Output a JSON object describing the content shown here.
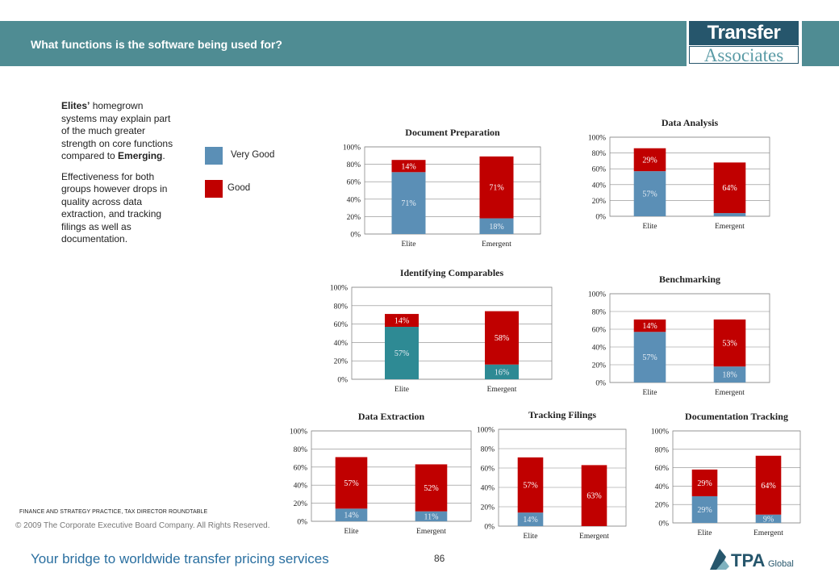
{
  "header": {
    "title": "What functions is the software being used for?",
    "logo_line1": "Transfer Pricing",
    "logo_line2": "Associates"
  },
  "sidebar": {
    "paragraph1_bold1": "Elites’",
    "paragraph1_rest": " homegrown systems may explain part of the much greater strength on core functions compared to ",
    "paragraph1_bold2": "Emerging",
    "paragraph1_end": ".",
    "paragraph2": "Effectiveness for both groups however drops in quality across data extraction, and tracking filings as well as documentation."
  },
  "legend": {
    "items": [
      {
        "label": "Very Good",
        "color": "#5b8fb6"
      },
      {
        "label": "Good",
        "color": "#c00000"
      }
    ]
  },
  "footer": {
    "practice": "FINANCE AND STRATEGY PRACTICE, TAX DIRECTOR ROUNDTABLE",
    "copyright": "© 2009 The Corporate Executive Board Company. All Rights Reserved.",
    "tagline_prefix": "Your bridge",
    "tagline_rest": " to worldwide transfer pricing services",
    "page_number": "86",
    "tpa_logo_text": "TPA",
    "tpa_logo_sub": "Global"
  },
  "colors": {
    "very_good": "#5b8fb6",
    "good": "#c00000",
    "teal_bar": "#2e8a94"
  },
  "chart_data": [
    {
      "id": "document-preparation",
      "type": "bar",
      "stacked": true,
      "title": "Document Preparation",
      "categories": [
        "Elite",
        "Emergent"
      ],
      "ylim": [
        0,
        100
      ],
      "yticks": [
        "0%",
        "20%",
        "40%",
        "60%",
        "80%",
        "100%"
      ],
      "series": [
        {
          "values": [
            71,
            18
          ],
          "labels": [
            "71%",
            "18%"
          ]
        },
        {
          "values": [
            14,
            71
          ],
          "labels": [
            "14%",
            "71%"
          ]
        }
      ]
    },
    {
      "id": "data-analysis",
      "type": "bar",
      "stacked": true,
      "title": "Data Analysis",
      "categories": [
        "Elite",
        "Emergent"
      ],
      "ylim": [
        0,
        100
      ],
      "yticks": [
        "0%",
        "20%",
        "40%",
        "60%",
        "80%",
        "100%"
      ],
      "series": [
        {
          "values": [
            57,
            4
          ],
          "labels": [
            "57%",
            "4%"
          ]
        },
        {
          "values": [
            29,
            64
          ],
          "labels": [
            "29%",
            "64%"
          ]
        }
      ]
    },
    {
      "id": "identifying-comparables",
      "type": "bar",
      "stacked": true,
      "title": "Identifying Comparables",
      "categories": [
        "Elite",
        "Emergent"
      ],
      "ylim": [
        0,
        100
      ],
      "yticks": [
        "0%",
        "20%",
        "40%",
        "60%",
        "80%",
        "100%"
      ],
      "series": [
        {
          "values": [
            57,
            16
          ],
          "labels": [
            "57%",
            "16%"
          ]
        },
        {
          "values": [
            14,
            58
          ],
          "labels": [
            "14%",
            "58%"
          ]
        }
      ]
    },
    {
      "id": "benchmarking",
      "type": "bar",
      "stacked": true,
      "title": "Benchmarking",
      "categories": [
        "Elite",
        "Emergent"
      ],
      "ylim": [
        0,
        100
      ],
      "yticks": [
        "0%",
        "20%",
        "40%",
        "60%",
        "80%",
        "100%"
      ],
      "series": [
        {
          "values": [
            57,
            18
          ],
          "labels": [
            "57%",
            "18%"
          ]
        },
        {
          "values": [
            14,
            53
          ],
          "labels": [
            "14%",
            "53%"
          ]
        }
      ]
    },
    {
      "id": "data-extraction",
      "type": "bar",
      "stacked": true,
      "title": "Data Extraction",
      "categories": [
        "Elite",
        "Emergent"
      ],
      "ylim": [
        0,
        100
      ],
      "yticks": [
        "0%",
        "20%",
        "40%",
        "60%",
        "80%",
        "100%"
      ],
      "series": [
        {
          "values": [
            14,
            11
          ],
          "labels": [
            "14%",
            "11%"
          ]
        },
        {
          "values": [
            57,
            52
          ],
          "labels": [
            "57%",
            "52%"
          ]
        }
      ]
    },
    {
      "id": "tracking-filings",
      "type": "bar",
      "stacked": true,
      "title": "Tracking Filings",
      "categories": [
        "Elite",
        "Emergent"
      ],
      "ylim": [
        0,
        100
      ],
      "yticks": [
        "0%",
        "20%",
        "40%",
        "60%",
        "80%",
        "100%"
      ],
      "series": [
        {
          "values": [
            14,
            0
          ],
          "labels": [
            "14%",
            "0%"
          ]
        },
        {
          "values": [
            57,
            63
          ],
          "labels": [
            "57%",
            "63%"
          ]
        }
      ]
    },
    {
      "id": "documentation-tracking",
      "type": "bar",
      "stacked": true,
      "title": "Documentation Tracking",
      "categories": [
        "Elite",
        "Emergent"
      ],
      "ylim": [
        0,
        100
      ],
      "yticks": [
        "0%",
        "20%",
        "40%",
        "60%",
        "80%",
        "100%"
      ],
      "series": [
        {
          "values": [
            29,
            9
          ],
          "labels": [
            "29%",
            "9%"
          ]
        },
        {
          "values": [
            29,
            64
          ],
          "labels": [
            "29%",
            "64%"
          ]
        }
      ]
    }
  ]
}
